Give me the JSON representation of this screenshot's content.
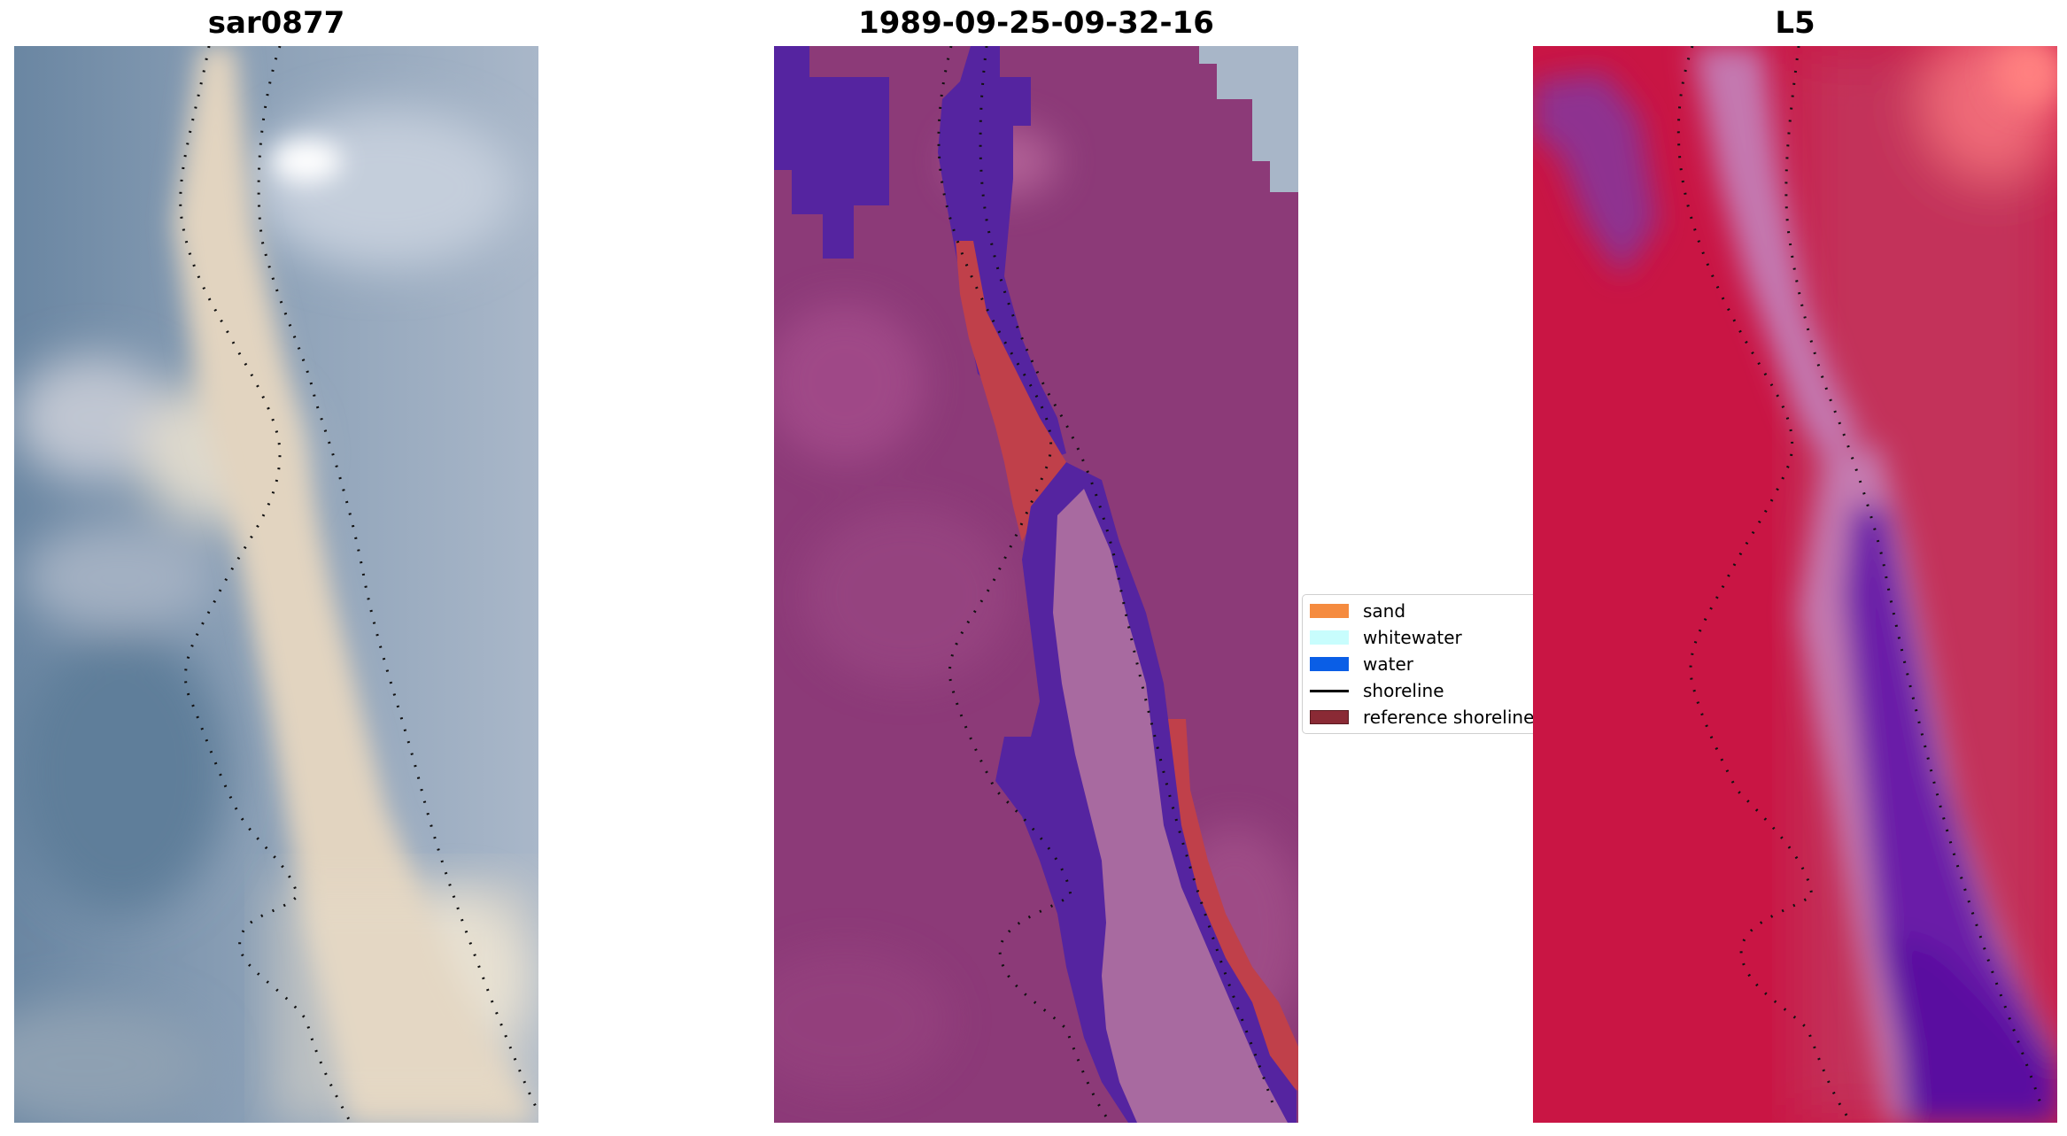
{
  "panels": [
    {
      "title": "sar0877"
    },
    {
      "title": "1989-09-25-09-32-16"
    },
    {
      "title": "L5"
    }
  ],
  "legend": {
    "items": [
      {
        "label": "sand",
        "kind": "patch",
        "color": "#f58b3f"
      },
      {
        "label": "whitewater",
        "kind": "patch",
        "color": "#c8fdfd"
      },
      {
        "label": "water",
        "kind": "patch",
        "color": "#0a5ee6"
      },
      {
        "label": "shoreline",
        "kind": "line",
        "color": "#000000"
      },
      {
        "label": "reference shoreline",
        "kind": "patch",
        "color": "#8a2a35"
      }
    ]
  },
  "colors": {
    "rgb_sea": "#6f8aa4",
    "rgb_beach": "#e3d6c2",
    "class_background": "#8c3a78",
    "class_water": "#5524a0",
    "class_reference": "#c0404a",
    "class_sand": "#a86aa0",
    "index_land": "#c91544",
    "index_water": "#5a10a0"
  }
}
